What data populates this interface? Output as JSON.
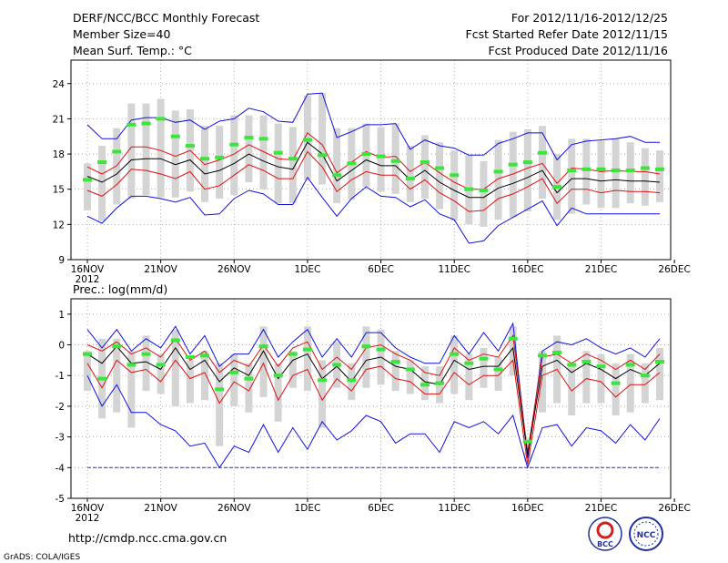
{
  "header": {
    "title": "DERF/NCC/BCC Monthly Forecast",
    "member_size": "Member Size=40",
    "variable": "Mean Surf. Temp.: °C",
    "period": "For 2012/11/16-2012/12/25",
    "start_date": "Fcst Started Refer Date 2012/11/15",
    "produced_date": "Fcst Produced Date 2012/11/16"
  },
  "footer": {
    "url": "http://cmdp.ncc.cma.gov.cn",
    "credit": "GrADS: COLA/IGES",
    "logo_left": "BCC",
    "logo_right": "NCC"
  },
  "colors": {
    "box": "#d4d4d4",
    "median": "#39e639",
    "mean": "#000000",
    "inner": "#e01010",
    "outer": "#1010e0",
    "baseline": "#3030cc"
  },
  "chart_data": [
    {
      "type": "line",
      "title": "Mean Surf. Temp.: °C",
      "xlabel": "",
      "ylabel": "",
      "x_ticks": [
        "16NOV",
        "21NOV",
        "26NOV",
        "1DEC",
        "6DEC",
        "11DEC",
        "16DEC",
        "21DEC",
        "26DEC"
      ],
      "x_year_label": "2012",
      "ylim": [
        9,
        26
      ],
      "y_ticks": [
        9,
        12,
        15,
        18,
        21,
        24
      ],
      "grid": true,
      "days": 40,
      "series": [
        {
          "name": "ensemble mean",
          "values": [
            16.1,
            15.6,
            16.3,
            17.5,
            17.6,
            17.6,
            17.1,
            17.5,
            16.3,
            16.6,
            17.2,
            18.0,
            17.4,
            16.9,
            16.7,
            19.0,
            18.0,
            15.7,
            16.6,
            17.5,
            17.0,
            17.0,
            15.8,
            16.6,
            15.6,
            14.9,
            14.3,
            14.3,
            15.1,
            15.5,
            16.0,
            16.6,
            14.7,
            15.9,
            15.9,
            15.7,
            15.8,
            15.7,
            15.7,
            15.6
          ]
        },
        {
          "name": "upper inner",
          "values": [
            16.9,
            16.3,
            17.0,
            18.6,
            18.6,
            18.3,
            17.8,
            18.3,
            17.1,
            17.5,
            18.0,
            18.8,
            18.2,
            17.6,
            17.5,
            19.8,
            18.8,
            16.4,
            17.3,
            18.2,
            17.7,
            17.8,
            16.5,
            17.3,
            16.4,
            15.6,
            15.0,
            15.0,
            15.9,
            16.3,
            16.8,
            17.2,
            15.5,
            16.8,
            16.7,
            16.5,
            16.6,
            16.5,
            16.5,
            16.3
          ]
        },
        {
          "name": "lower inner",
          "values": [
            14.9,
            14.4,
            15.4,
            16.7,
            16.6,
            16.3,
            15.9,
            16.5,
            15.0,
            15.3,
            16.2,
            17.1,
            16.6,
            15.9,
            15.9,
            18.2,
            16.9,
            14.8,
            15.8,
            16.5,
            16.2,
            16.2,
            15.0,
            15.8,
            14.7,
            14.0,
            13.1,
            13.2,
            14.2,
            14.6,
            15.2,
            15.9,
            13.8,
            15.0,
            15.0,
            14.7,
            14.9,
            14.8,
            14.8,
            14.7
          ]
        },
        {
          "name": "upper outer",
          "values": [
            20.5,
            19.3,
            19.3,
            20.9,
            21.1,
            21.1,
            20.7,
            20.9,
            20.1,
            20.8,
            21.0,
            21.9,
            21.6,
            20.8,
            20.7,
            23.1,
            23.2,
            19.4,
            19.9,
            20.5,
            20.5,
            20.6,
            18.4,
            19.2,
            18.7,
            18.5,
            17.9,
            17.9,
            18.9,
            19.3,
            19.8,
            19.8,
            17.5,
            18.8,
            19.1,
            19.2,
            19.3,
            19.5,
            19.0,
            19.0
          ]
        },
        {
          "name": "lower outer",
          "values": [
            12.7,
            12.1,
            13.4,
            14.4,
            14.4,
            14.2,
            13.9,
            14.3,
            12.8,
            12.9,
            14.2,
            14.9,
            14.6,
            13.7,
            13.7,
            16.0,
            14.3,
            12.7,
            14.2,
            15.2,
            14.4,
            14.3,
            13.5,
            14.1,
            12.9,
            12.4,
            10.4,
            10.6,
            11.9,
            12.6,
            13.3,
            14.0,
            11.9,
            13.4,
            12.9,
            12.9,
            12.9,
            12.9,
            12.9,
            12.9
          ]
        },
        {
          "name": "median",
          "values": [
            15.8,
            17.3,
            18.2,
            20.5,
            20.6,
            21.0,
            19.5,
            18.7,
            17.6,
            17.7,
            18.8,
            19.4,
            19.3,
            18.1,
            17.6,
            19.2,
            17.9,
            16.2,
            17.2,
            18.0,
            17.8,
            17.4,
            15.9,
            17.3,
            16.8,
            16.2,
            15.0,
            14.9,
            16.5,
            17.1,
            17.3,
            18.1,
            15.2,
            16.6,
            16.7,
            16.7,
            16.6,
            16.6,
            16.8,
            16.7
          ]
        },
        {
          "name": "box top",
          "values": [
            17.2,
            18.7,
            20.2,
            22.3,
            22.3,
            22.7,
            21.7,
            21.8,
            20.4,
            20.4,
            21.3,
            21.3,
            21.3,
            20.6,
            20.3,
            23.0,
            23.2,
            20.2,
            20.2,
            20.6,
            20.3,
            20.6,
            18.7,
            19.6,
            19.0,
            18.3,
            17.9,
            17.4,
            19.2,
            19.9,
            20.1,
            20.4,
            18.0,
            19.3,
            19.3,
            19.1,
            19.3,
            19.0,
            18.5,
            18.3
          ]
        },
        {
          "name": "box bottom",
          "values": [
            13.2,
            12.3,
            13.7,
            14.2,
            14.5,
            14.3,
            14.3,
            14.8,
            13.9,
            14.2,
            14.5,
            15.6,
            15.0,
            13.8,
            13.8,
            15.8,
            15.4,
            13.8,
            14.1,
            15.2,
            14.8,
            14.6,
            13.9,
            14.2,
            13.3,
            12.3,
            12.0,
            11.8,
            12.4,
            12.6,
            13.1,
            14.2,
            12.4,
            12.9,
            13.7,
            13.4,
            13.4,
            13.8,
            13.6,
            13.9
          ]
        }
      ]
    },
    {
      "type": "line",
      "title": "Prec.: log(mm/d)",
      "xlabel": "",
      "ylabel": "",
      "x_ticks": [
        "16NOV",
        "21NOV",
        "26NOV",
        "1DEC",
        "6DEC",
        "11DEC",
        "16DEC",
        "21DEC",
        "26DEC"
      ],
      "x_year_label": "2012",
      "ylim": [
        -5,
        1.5
      ],
      "y_ticks": [
        -5,
        -4,
        -3,
        -2,
        -1,
        0,
        1
      ],
      "grid": true,
      "days": 40,
      "series": [
        {
          "name": "ensemble mean",
          "values": [
            -0.3,
            -0.6,
            -0.05,
            -0.6,
            -0.55,
            -0.8,
            -0.1,
            -0.8,
            -0.5,
            -1.2,
            -0.75,
            -1.0,
            -0.2,
            -1.1,
            -0.5,
            -0.3,
            -1.1,
            -0.7,
            -1.2,
            -0.5,
            -0.4,
            -0.7,
            -0.8,
            -1.2,
            -1.3,
            -0.5,
            -0.8,
            -0.7,
            -0.7,
            -0.1,
            -3.6,
            -0.7,
            -0.5,
            -0.9,
            -0.6,
            -0.8,
            -1.1,
            -0.8,
            -1.0,
            -0.6
          ]
        },
        {
          "name": "upper inner",
          "values": [
            0.0,
            -0.2,
            0.1,
            -0.3,
            -0.1,
            -0.4,
            0.2,
            -0.5,
            -0.2,
            -0.9,
            -0.5,
            -0.7,
            0.0,
            -0.7,
            -0.1,
            0.1,
            -0.8,
            -0.4,
            -0.8,
            -0.1,
            0.0,
            -0.3,
            -0.5,
            -0.9,
            -1.0,
            -0.1,
            -0.5,
            -0.3,
            -0.4,
            0.3,
            -3.5,
            -0.4,
            -0.3,
            -0.6,
            -0.3,
            -0.5,
            -0.8,
            -0.5,
            -0.8,
            -0.3
          ]
        },
        {
          "name": "lower inner",
          "values": [
            -0.6,
            -1.4,
            -0.5,
            -0.9,
            -0.8,
            -1.2,
            -0.5,
            -1.1,
            -0.9,
            -1.9,
            -1.2,
            -1.5,
            -0.6,
            -1.8,
            -1.0,
            -0.8,
            -1.8,
            -1.1,
            -1.5,
            -0.8,
            -0.7,
            -1.1,
            -1.2,
            -1.6,
            -1.6,
            -0.9,
            -1.3,
            -1.0,
            -1.0,
            -0.5,
            -3.9,
            -1.0,
            -0.8,
            -1.5,
            -1.1,
            -1.2,
            -1.7,
            -1.3,
            -1.3,
            -0.9
          ]
        },
        {
          "name": "upper outer",
          "values": [
            0.5,
            -0.1,
            0.5,
            -0.2,
            0.2,
            -0.1,
            0.6,
            -0.3,
            0.3,
            -0.7,
            -0.3,
            -0.3,
            0.5,
            -0.4,
            0.1,
            0.5,
            -0.4,
            0.2,
            -0.4,
            0.4,
            0.4,
            -0.1,
            -0.4,
            -0.6,
            -0.6,
            0.3,
            -0.3,
            0.4,
            -0.2,
            0.7,
            -3.7,
            -0.2,
            0.1,
            0.0,
            0.2,
            -0.1,
            -0.3,
            -0.1,
            -0.4,
            0.2
          ]
        },
        {
          "name": "lower outer",
          "values": [
            -1.0,
            -2.0,
            -1.3,
            -2.2,
            -2.2,
            -2.6,
            -2.8,
            -3.3,
            -3.2,
            -4.0,
            -3.3,
            -3.5,
            -2.6,
            -3.5,
            -2.7,
            -3.4,
            -2.5,
            -3.1,
            -2.8,
            -2.3,
            -2.5,
            -3.2,
            -2.9,
            -2.9,
            -3.5,
            -2.5,
            -2.7,
            -2.5,
            -2.9,
            -2.3,
            -4.0,
            -2.7,
            -2.6,
            -3.3,
            -2.7,
            -2.8,
            -3.2,
            -2.6,
            -3.1,
            -2.4
          ]
        },
        {
          "name": "median",
          "values": [
            -0.3,
            -1.1,
            -0.05,
            -0.65,
            -0.3,
            -0.65,
            0.15,
            -0.4,
            -0.35,
            -1.45,
            -0.9,
            -1.1,
            -0.05,
            -1.0,
            -0.3,
            -0.15,
            -1.15,
            -0.65,
            -1.15,
            -0.05,
            -0.15,
            -0.55,
            -0.8,
            -1.3,
            -1.25,
            -0.3,
            -0.6,
            -0.45,
            -0.8,
            0.2,
            -3.15,
            -0.35,
            -0.25,
            -0.65,
            -0.55,
            -0.7,
            -1.25,
            -0.65,
            -1.0,
            -0.55
          ]
        },
        {
          "name": "box top",
          "values": [
            -0.2,
            0.2,
            0.2,
            -0.2,
            0.3,
            -0.3,
            0.5,
            -0.5,
            -0.2,
            -0.6,
            -0.3,
            -0.6,
            0.6,
            -0.6,
            -0.2,
            0.6,
            -0.5,
            0.1,
            -0.6,
            0.6,
            0.5,
            -0.2,
            -0.5,
            -0.7,
            -0.7,
            0.3,
            -0.3,
            -0.1,
            -0.4,
            0.6,
            -3.5,
            -0.2,
            0.3,
            -0.6,
            -0.2,
            -0.3,
            -0.6,
            -0.3,
            -0.6,
            -0.1
          ]
        },
        {
          "name": "box bottom",
          "values": [
            -1.5,
            -2.4,
            -2.2,
            -2.7,
            -1.5,
            -1.6,
            -2.0,
            -1.9,
            -1.8,
            -3.3,
            -2.0,
            -2.2,
            -1.7,
            -2.5,
            -1.4,
            -1.5,
            -2.7,
            -1.4,
            -1.8,
            -1.4,
            -1.3,
            -1.5,
            -1.6,
            -1.8,
            -1.9,
            -1.6,
            -1.8,
            -1.4,
            -1.5,
            -1.0,
            -3.8,
            -2.2,
            -1.9,
            -2.3,
            -1.9,
            -1.9,
            -2.3,
            -2.2,
            -1.9,
            -1.8
          ]
        },
        {
          "name": "baseline",
          "values": [
            -4,
            -4
          ]
        }
      ]
    }
  ]
}
